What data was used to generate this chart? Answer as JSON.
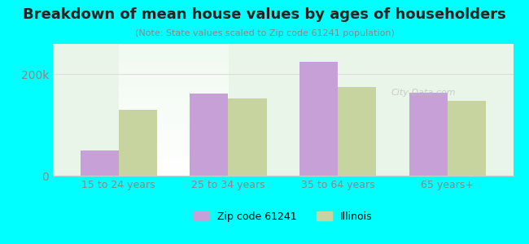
{
  "title": "Breakdown of mean house values by ages of householders",
  "subtitle": "(Note: State values scaled to Zip code 61241 population)",
  "categories": [
    "15 to 24 years",
    "25 to 34 years",
    "35 to 64 years",
    "65 years+"
  ],
  "zip_values": [
    50000,
    162000,
    225000,
    163000
  ],
  "il_values": [
    130000,
    152000,
    175000,
    148000
  ],
  "zip_color": "#c8a0d8",
  "il_color": "#c8d4a0",
  "background_color": "#00ffff",
  "plot_bg_top": "#e8f8e8",
  "plot_bg_bottom": "#ffffff",
  "ylim": [
    0,
    260000
  ],
  "yticks": [
    0,
    200000
  ],
  "ytick_labels": [
    "0",
    "200k"
  ],
  "legend_zip_label": "Zip code 61241",
  "legend_il_label": "Illinois",
  "bar_width": 0.35
}
